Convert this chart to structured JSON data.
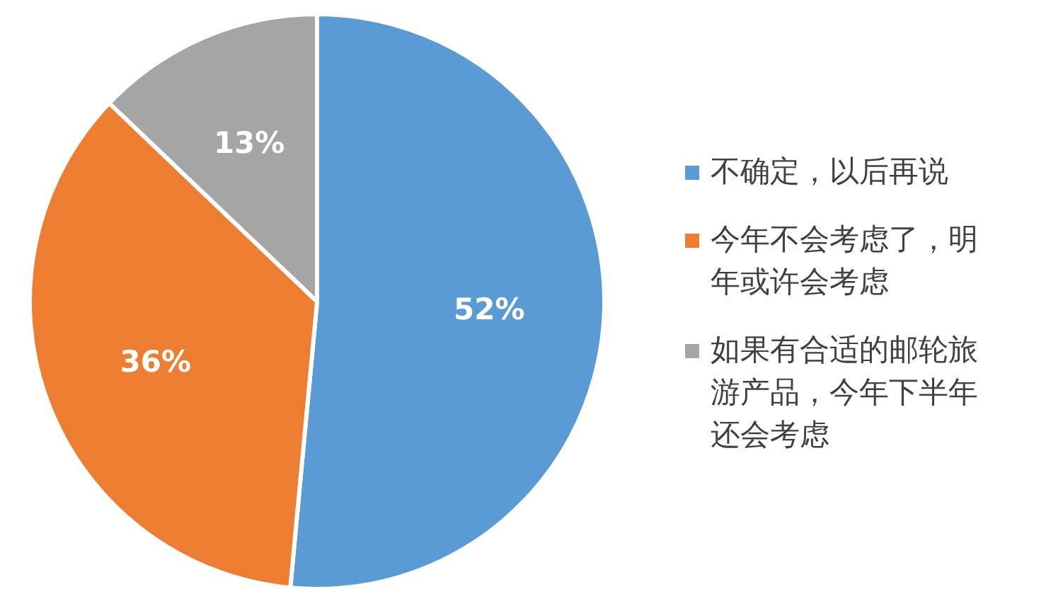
{
  "chart_data": {
    "type": "pie",
    "categories": [
      "不确定，以后再说",
      "今年不会考虑了，明年或许会考虑",
      "如果有合适的邮轮旅游产品，今年下半年还会考虑"
    ],
    "values": [
      52,
      36,
      13
    ],
    "colors": [
      "#5b9bd5",
      "#ed7d31",
      "#a5a5a5"
    ],
    "value_labels": [
      "52%",
      "36%",
      "13%"
    ],
    "legend": "right"
  }
}
